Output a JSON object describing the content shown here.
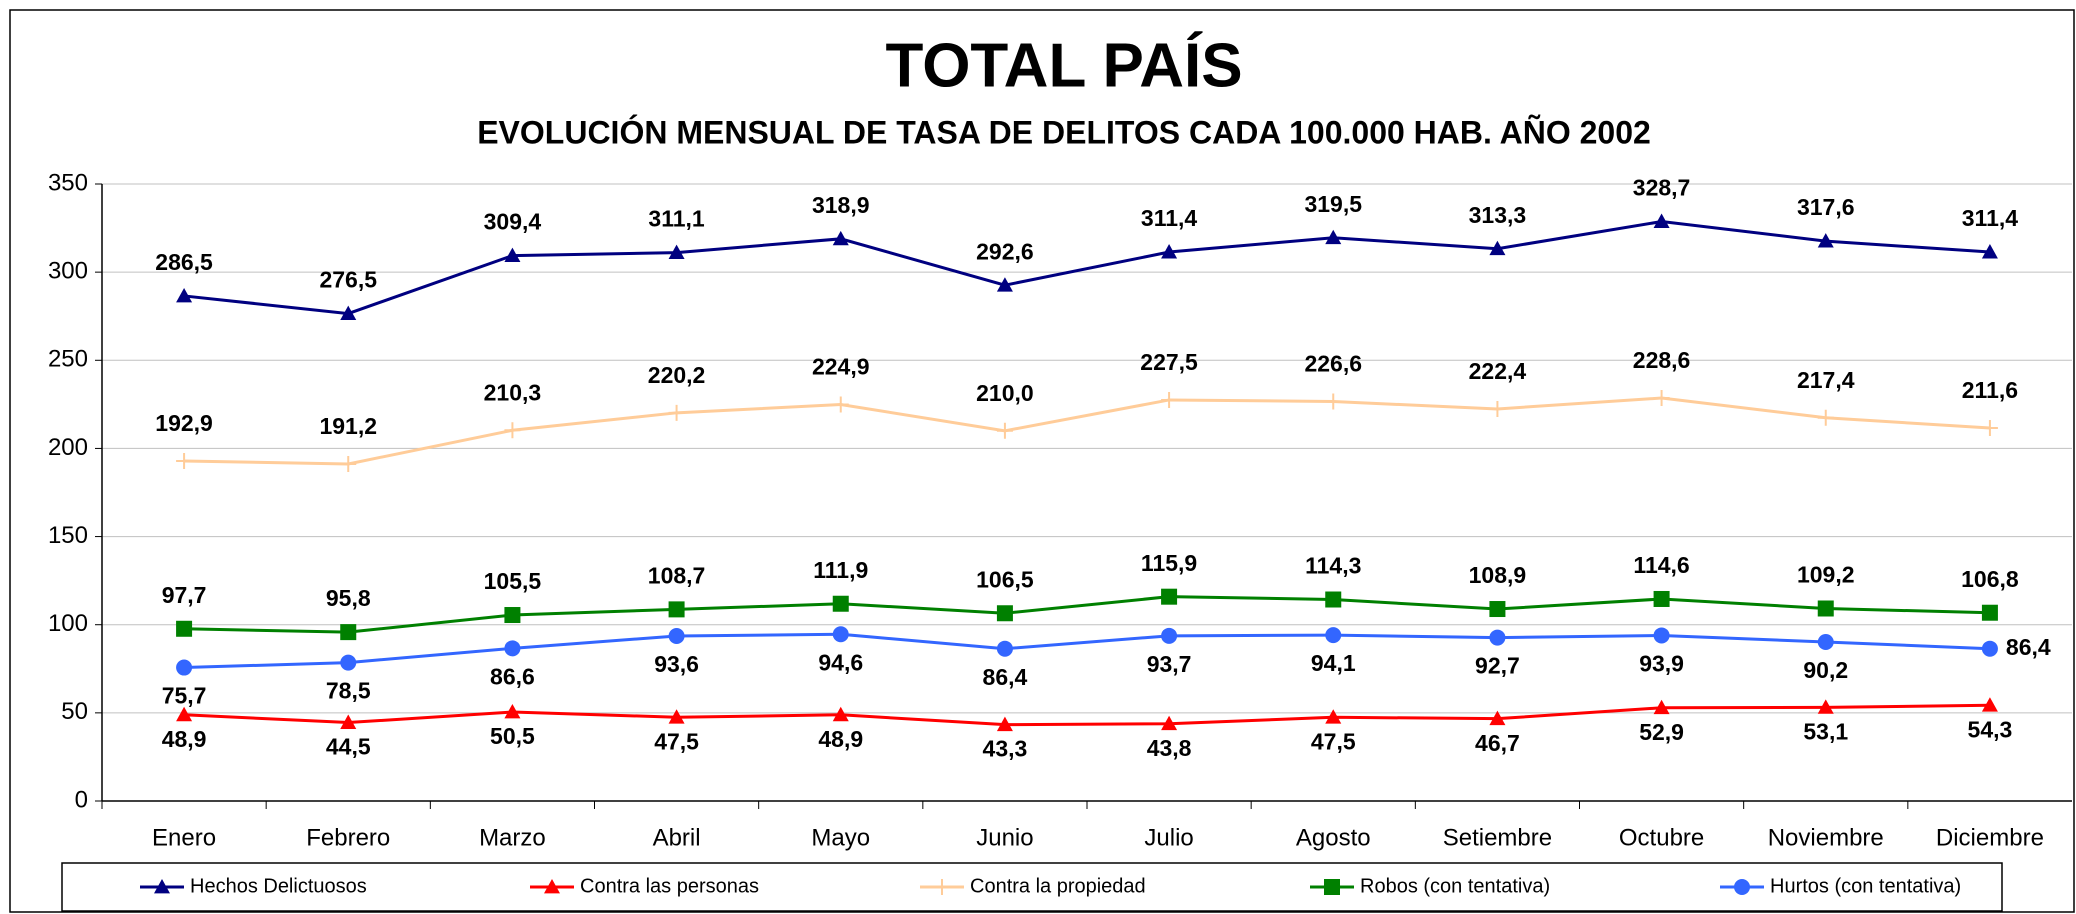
{
  "chart_data": {
    "type": "line",
    "title": "TOTAL PAÍS",
    "subtitle": "EVOLUCIÓN MENSUAL DE TASA DE DELITOS CADA 100.000 HAB. AÑO 2002",
    "categories": [
      "Enero",
      "Febrero",
      "Marzo",
      "Abril",
      "Mayo",
      "Junio",
      "Julio",
      "Agosto",
      "Setiembre",
      "Octubre",
      "Noviembre",
      "Diciembre"
    ],
    "ylim": [
      0,
      350
    ],
    "yticks": [
      0,
      50,
      100,
      150,
      200,
      250,
      300,
      350
    ],
    "grid": true,
    "legend": "bottom",
    "series": [
      {
        "name": "Hechos Delictuosos",
        "color": "#000080",
        "marker": "triangle",
        "values": [
          286.5,
          276.5,
          309.4,
          311.1,
          318.9,
          292.6,
          311.4,
          319.5,
          313.3,
          328.7,
          317.6,
          311.4
        ],
        "value_labels": [
          "286,5",
          "276,5",
          "309,4",
          "311,1",
          "318,9",
          "292,6",
          "311,4",
          "319,5",
          "313,3",
          "328,7",
          "317,6",
          "311,4"
        ]
      },
      {
        "name": "Contra las personas",
        "color": "#ff0000",
        "marker": "triangle",
        "values": [
          48.9,
          44.5,
          50.5,
          47.5,
          48.9,
          43.3,
          43.8,
          47.5,
          46.7,
          52.9,
          53.1,
          54.3
        ],
        "value_labels": [
          "48,9",
          "44,5",
          "50,5",
          "47,5",
          "48,9",
          "43,3",
          "43,8",
          "47,5",
          "46,7",
          "52,9",
          "53,1",
          "54,3"
        ]
      },
      {
        "name": "Contra la propiedad",
        "color": "#ffcc99",
        "marker": "plus",
        "values": [
          192.9,
          191.2,
          210.3,
          220.2,
          224.9,
          210.0,
          227.5,
          226.6,
          222.4,
          228.6,
          217.4,
          211.6
        ],
        "value_labels": [
          "192,9",
          "191,2",
          "210,3",
          "220,2",
          "224,9",
          "210,0",
          "227,5",
          "226,6",
          "222,4",
          "228,6",
          "217,4",
          "211,6"
        ]
      },
      {
        "name": "Robos (con tentativa)",
        "color": "#008000",
        "marker": "square",
        "values": [
          97.7,
          95.8,
          105.5,
          108.7,
          111.9,
          106.5,
          115.9,
          114.3,
          108.9,
          114.6,
          109.2,
          106.8
        ],
        "value_labels": [
          "97,7",
          "95,8",
          "105,5",
          "108,7",
          "111,9",
          "106,5",
          "115,9",
          "114,3",
          "108,9",
          "114,6",
          "109,2",
          "106,8"
        ]
      },
      {
        "name": "Hurtos (con tentativa)",
        "color": "#3366ff",
        "marker": "circle",
        "values": [
          75.7,
          78.5,
          86.6,
          93.6,
          94.6,
          86.4,
          93.7,
          94.1,
          92.7,
          93.9,
          90.2,
          86.4
        ],
        "value_labels": [
          "75,7",
          "78,5",
          "86,6",
          "93,6",
          "94,6",
          "86,4",
          "93,7",
          "94,1",
          "92,7",
          "93,9",
          "90,2",
          "86,4"
        ]
      }
    ]
  }
}
